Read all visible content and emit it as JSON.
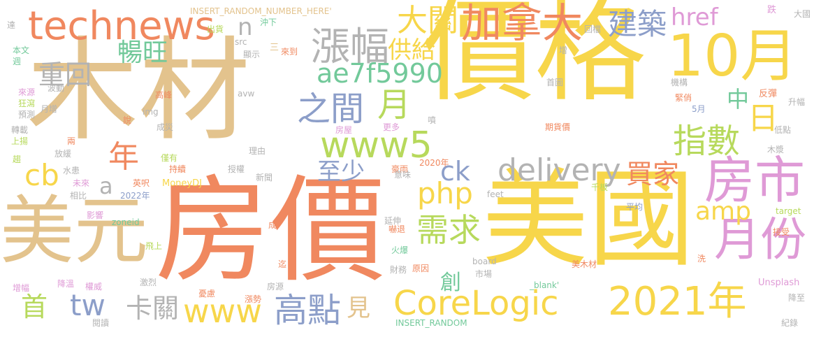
{
  "palette": {
    "yellow": "#f7d64a",
    "tan": "#e3c38d",
    "orange": "#f0885f",
    "blue": "#8c9ec9",
    "green": "#72c99a",
    "lime": "#b7d95c",
    "pink": "#df9ad6",
    "gray": "#b3b3b3",
    "yellowgreen": "#a5d07a"
  },
  "words": [
    {
      "text": "價格",
      "color": "yellow"
    },
    {
      "text": "木材",
      "color": "tan"
    },
    {
      "text": "房價",
      "color": "orange"
    },
    {
      "text": "美國",
      "color": "yellow"
    },
    {
      "text": "美元",
      "color": "tan"
    },
    {
      "text": "10月",
      "color": "yellow"
    },
    {
      "text": "technews",
      "color": "orange"
    },
    {
      "text": "CoreLogic",
      "color": "yellow"
    },
    {
      "text": "2021年",
      "color": "yellow"
    },
    {
      "text": "房市",
      "color": "pink"
    },
    {
      "text": "月份",
      "color": "pink"
    },
    {
      "text": "delivery",
      "color": "gray"
    },
    {
      "text": "www5",
      "color": "lime"
    },
    {
      "text": "加拿大",
      "color": "orange"
    },
    {
      "text": "漲幅",
      "color": "gray"
    },
    {
      "text": "ae7f5990",
      "color": "green"
    },
    {
      "text": "指數",
      "color": "lime"
    },
    {
      "text": "www",
      "color": "yellow"
    },
    {
      "text": "高點",
      "color": "blue"
    },
    {
      "text": "需求",
      "color": "lime"
    },
    {
      "text": "買家",
      "color": "orange"
    },
    {
      "text": "之間",
      "color": "blue"
    },
    {
      "text": "大關",
      "color": "yellow"
    },
    {
      "text": "建築",
      "color": "blue"
    },
    {
      "text": "php",
      "color": "yellow"
    },
    {
      "text": "amp",
      "color": "yellow"
    },
    {
      "text": "月",
      "color": "lime"
    },
    {
      "text": "日",
      "color": "yellow"
    },
    {
      "text": "tw",
      "color": "blue"
    },
    {
      "text": "cb",
      "color": "yellow"
    },
    {
      "text": "卡關",
      "color": "gray"
    },
    {
      "text": "重回",
      "color": "gray"
    },
    {
      "text": "暢旺",
      "color": "green"
    },
    {
      "text": "供給",
      "color": "yellow"
    },
    {
      "text": "年",
      "color": "orange"
    },
    {
      "text": "href",
      "color": "pink"
    },
    {
      "text": "至少",
      "color": "blue"
    },
    {
      "text": "ck",
      "color": "blue"
    },
    {
      "text": "首",
      "color": "lime"
    },
    {
      "text": "見",
      "color": "tan"
    },
    {
      "text": "中",
      "color": "green"
    },
    {
      "text": "n",
      "color": "gray"
    },
    {
      "text": "a",
      "color": "gray"
    },
    {
      "text": "創",
      "color": "green"
    },
    {
      "text": "INSERT_RANDOM_NUMBER_HERE'",
      "color": "tan"
    },
    {
      "text": "INSERT_RANDOM",
      "color": "green"
    },
    {
      "text": "MoneyDJ",
      "color": "yellow"
    },
    {
      "text": "Unsplash",
      "color": "pink"
    },
    {
      "text": "_blank'",
      "color": "green"
    },
    {
      "text": "zoneid",
      "color": "green"
    },
    {
      "text": "target",
      "color": "lime"
    },
    {
      "text": "board",
      "color": "gray"
    },
    {
      "text": "feet",
      "color": "gray"
    },
    {
      "text": "src",
      "color": "gray"
    },
    {
      "text": "img",
      "color": "gray"
    },
    {
      "text": "avw",
      "color": "gray"
    },
    {
      "text": "2022年",
      "color": "blue"
    },
    {
      "text": "2020年",
      "color": "orange"
    },
    {
      "text": "5月",
      "color": "blue"
    },
    {
      "text": "出貨",
      "color": "lime"
    },
    {
      "text": "沖下",
      "color": "green"
    },
    {
      "text": "來到",
      "color": "orange"
    },
    {
      "text": "顯示",
      "color": "gray"
    },
    {
      "text": "三",
      "color": "tan"
    },
    {
      "text": "跌",
      "color": "pink"
    },
    {
      "text": "大國",
      "color": "gray"
    },
    {
      "text": "回檔",
      "color": "gray"
    },
    {
      "text": "增",
      "color": "gray"
    },
    {
      "text": "首圖",
      "color": "gray"
    },
    {
      "text": "機構",
      "color": "gray"
    },
    {
      "text": "緊俏",
      "color": "orange"
    },
    {
      "text": "反彈",
      "color": "orange"
    },
    {
      "text": "升幅",
      "color": "gray"
    },
    {
      "text": "低點",
      "color": "gray"
    },
    {
      "text": "期貨價",
      "color": "orange"
    },
    {
      "text": "木漿",
      "color": "gray"
    },
    {
      "text": "千板",
      "color": "lime"
    },
    {
      "text": "平均",
      "color": "blue"
    },
    {
      "text": "接受",
      "color": "orange"
    },
    {
      "text": "洗",
      "color": "orange"
    },
    {
      "text": "美木材",
      "color": "orange"
    },
    {
      "text": "降至",
      "color": "gray"
    },
    {
      "text": "紀錄",
      "color": "gray"
    },
    {
      "text": "達",
      "color": "gray"
    },
    {
      "text": "本文",
      "color": "green"
    },
    {
      "text": "週",
      "color": "green"
    },
    {
      "text": "波動",
      "color": "gray"
    },
    {
      "text": "來源",
      "color": "pink"
    },
    {
      "text": "狂瀉",
      "color": "lime"
    },
    {
      "text": "月增",
      "color": "gray"
    },
    {
      "text": "預測",
      "color": "gray"
    },
    {
      "text": "轉載",
      "color": "gray"
    },
    {
      "text": "上揚",
      "color": "lime"
    },
    {
      "text": "兩",
      "color": "orange"
    },
    {
      "text": "放緩",
      "color": "gray"
    },
    {
      "text": "趨",
      "color": "lime"
    },
    {
      "text": "水患",
      "color": "gray"
    },
    {
      "text": "相比",
      "color": "gray"
    },
    {
      "text": "未來",
      "color": "pink"
    },
    {
      "text": "英呎",
      "color": "orange"
    },
    {
      "text": "影響",
      "color": "pink"
    },
    {
      "text": "高峰",
      "color": "orange"
    },
    {
      "text": "說",
      "color": "orange"
    },
    {
      "text": "成災",
      "color": "gray"
    },
    {
      "text": "僅有",
      "color": "lime"
    },
    {
      "text": "持續",
      "color": "orange"
    },
    {
      "text": "授權",
      "color": "gray"
    },
    {
      "text": "理由",
      "color": "gray"
    },
    {
      "text": "新聞",
      "color": "gray"
    },
    {
      "text": "房屋",
      "color": "pink"
    },
    {
      "text": "更多",
      "color": "pink"
    },
    {
      "text": "噴",
      "color": "gray"
    },
    {
      "text": "豪雨",
      "color": "orange"
    },
    {
      "text": "意味",
      "color": "gray"
    },
    {
      "text": "延伸",
      "color": "gray"
    },
    {
      "text": "嚇退",
      "color": "orange"
    },
    {
      "text": "火爆",
      "color": "green"
    },
    {
      "text": "原因",
      "color": "orange"
    },
    {
      "text": "財務",
      "color": "gray"
    },
    {
      "text": "市場",
      "color": "gray"
    },
    {
      "text": "成",
      "color": "orange"
    },
    {
      "text": "飛上",
      "color": "lime"
    },
    {
      "text": "迄",
      "color": "orange"
    },
    {
      "text": "激烈",
      "color": "gray"
    },
    {
      "text": "房源",
      "color": "gray"
    },
    {
      "text": "憂慮",
      "color": "orange"
    },
    {
      "text": "漲勢",
      "color": "orange"
    },
    {
      "text": "增幅",
      "color": "pink"
    },
    {
      "text": "降溫",
      "color": "pink"
    },
    {
      "text": "權威",
      "color": "pink"
    },
    {
      "text": "閱讀",
      "color": "gray"
    }
  ]
}
